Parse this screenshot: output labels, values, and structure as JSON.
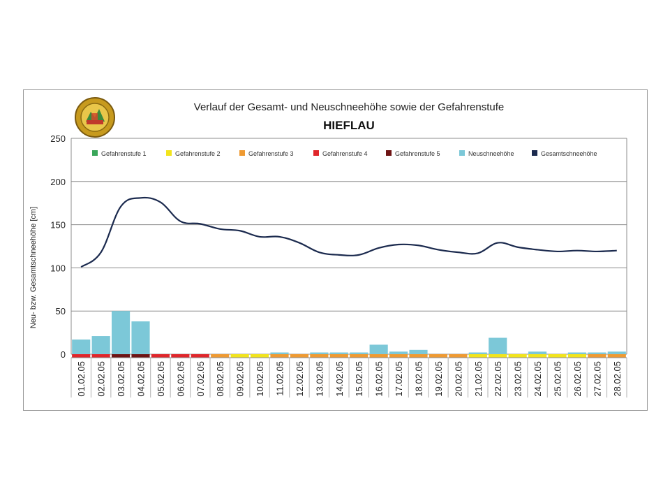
{
  "chart_data": {
    "type": "bar",
    "title": "Verlauf der Gesamt- und Neuschneehöhe sowie der Gefahrenstufe",
    "subtitle": "HIEFLAU",
    "ylabel": "Neu- bzw. Gesamtschneehöhe [cm]",
    "xlabel": "",
    "ylim": [
      0,
      250
    ],
    "yticks": [
      0,
      50,
      100,
      150,
      200,
      250
    ],
    "grid": true,
    "legend_position": "top",
    "categories": [
      "01.02.05",
      "02.02.05",
      "03.02.05",
      "04.02.05",
      "05.02.05",
      "06.02.05",
      "07.02.05",
      "08.02.05",
      "09.02.05",
      "10.02.05",
      "11.02.05",
      "12.02.05",
      "13.02.05",
      "14.02.05",
      "15.02.05",
      "16.02.05",
      "17.02.05",
      "18.02.05",
      "19.02.05",
      "20.02.05",
      "21.02.05",
      "22.02.05",
      "23.02.05",
      "24.02.05",
      "25.02.05",
      "26.02.05",
      "27.02.05",
      "28.02.05"
    ],
    "legend": [
      {
        "name": "Gefahrenstufe 1",
        "color": "#3aa65a"
      },
      {
        "name": "Gefahrenstufe 2",
        "color": "#f2e41c"
      },
      {
        "name": "Gefahrenstufe 3",
        "color": "#ef9a32"
      },
      {
        "name": "Gefahrenstufe 4",
        "color": "#e0262b"
      },
      {
        "name": "Gefahrenstufe 5",
        "color": "#6e1414"
      },
      {
        "name": "Neuschneehöhe",
        "color": "#7cc8d8"
      },
      {
        "name": "Gesamtschneehöhe",
        "color": "#1b2a4e"
      }
    ],
    "series": [
      {
        "name": "Neuschneehöhe",
        "type": "bar",
        "color": "#7cc8d8",
        "values": [
          17,
          21,
          50,
          38,
          0,
          0,
          0,
          0,
          0,
          0,
          2,
          0,
          2,
          2,
          2,
          11,
          3,
          5,
          0,
          0,
          2,
          19,
          0,
          3,
          0,
          2,
          2,
          3
        ]
      },
      {
        "name": "Gesamtschneehöhe",
        "type": "line",
        "color": "#1b2a4e",
        "values": [
          101,
          118,
          171,
          181,
          176,
          154,
          151,
          145,
          143,
          136,
          136,
          129,
          118,
          115,
          115,
          123,
          127,
          126,
          121,
          118,
          117,
          129,
          124,
          121,
          119,
          120,
          119,
          120
        ]
      }
    ],
    "danger_levels": [
      4,
      4,
      5,
      5,
      4,
      4,
      4,
      3,
      2,
      2,
      3,
      3,
      3,
      3,
      3,
      3,
      3,
      3,
      3,
      3,
      2,
      2,
      2,
      2,
      2,
      2,
      3,
      3
    ]
  }
}
